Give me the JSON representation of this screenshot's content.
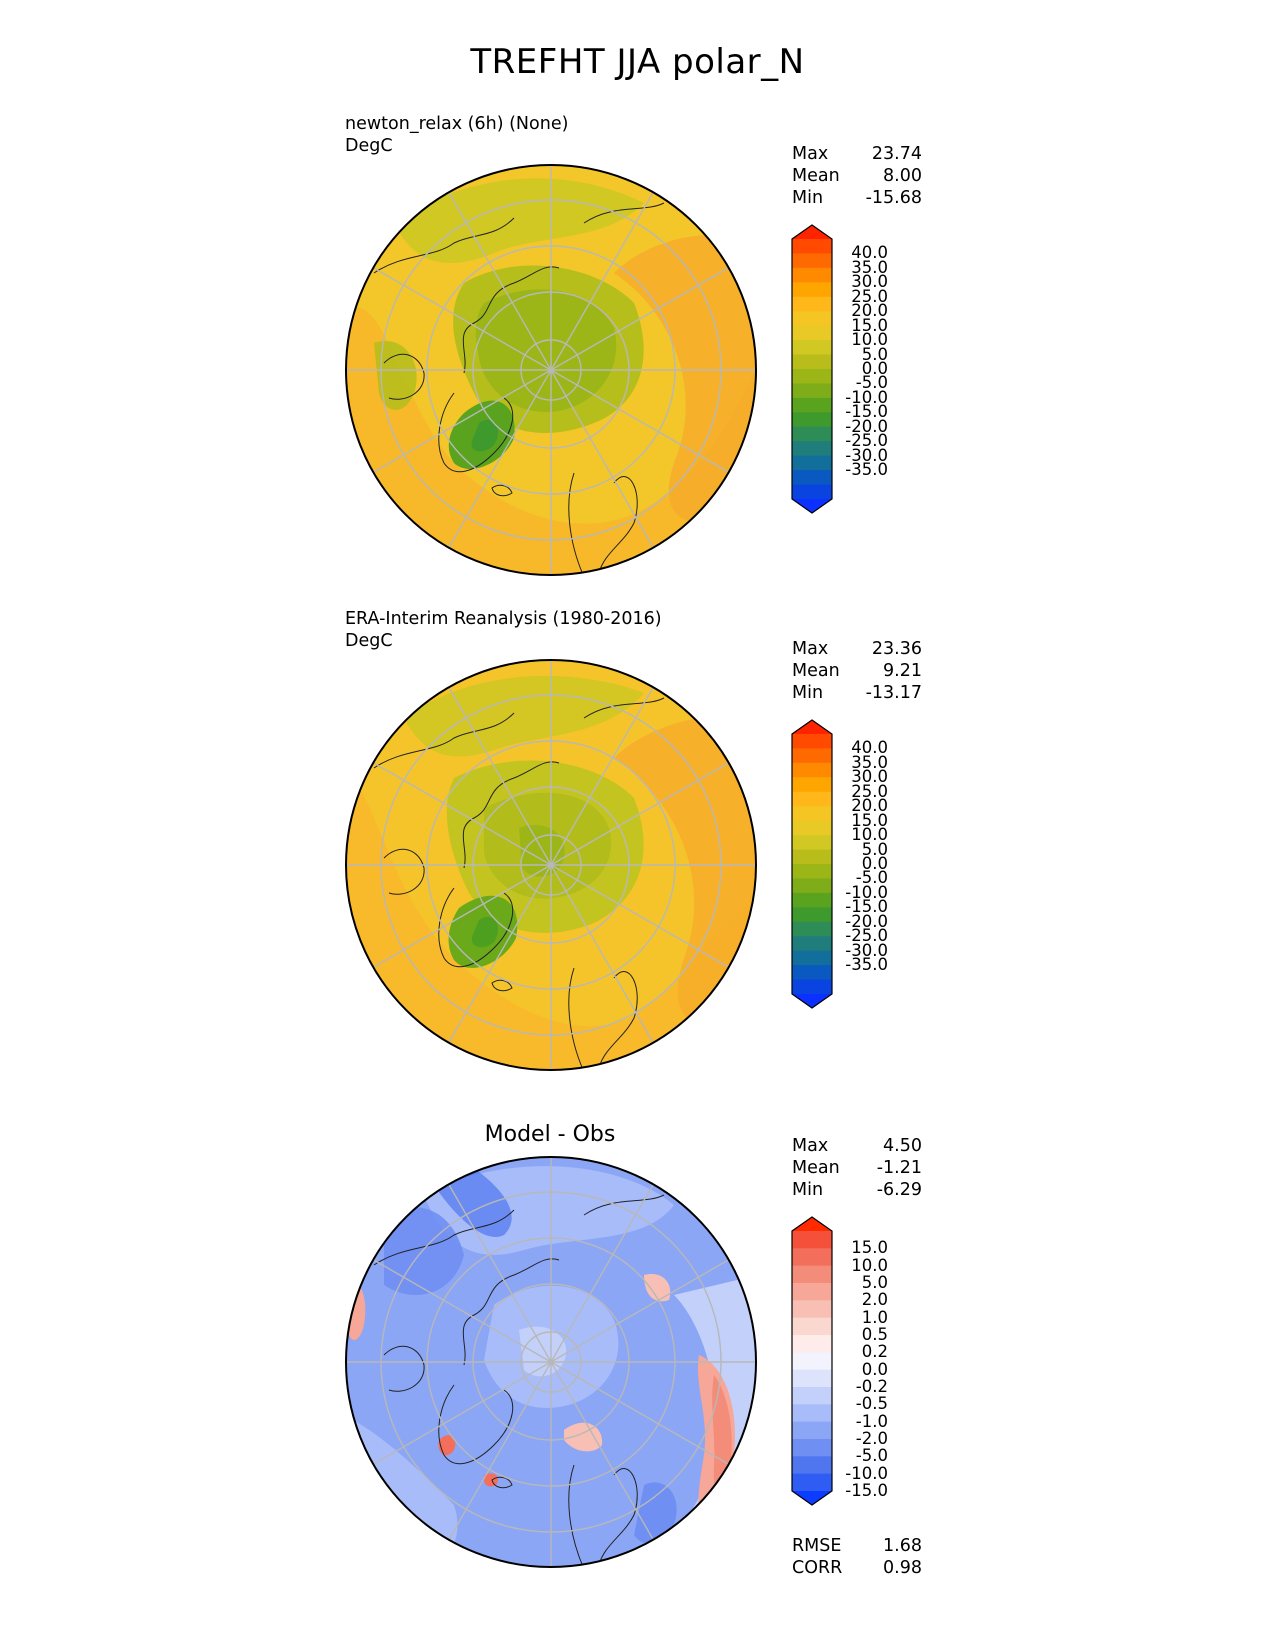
{
  "title": "TREFHT JJA polar_N",
  "panels": [
    {
      "id": "test",
      "title_line1": "newton_relax (6h) (None)",
      "title_line2": "DegC",
      "stats": [
        {
          "label": "Max",
          "value": "23.74"
        },
        {
          "label": "Mean",
          "value": "8.00"
        },
        {
          "label": "Min",
          "value": "-15.68"
        }
      ],
      "colorbar": {
        "ticks": [
          "40.0",
          "35.0",
          "30.0",
          "25.0",
          "20.0",
          "15.0",
          "10.0",
          "5.0",
          "0.0",
          "-5.0",
          "-10.0",
          "-15.0",
          "-20.0",
          "-25.0",
          "-30.0",
          "-35.0"
        ],
        "colors": [
          "#ff2400",
          "#ff4a00",
          "#ff6a00",
          "#ff8a00",
          "#ffa500",
          "#ffb71a",
          "#f5c623",
          "#e8c925",
          "#d2c823",
          "#b8bd1c",
          "#9cb618",
          "#7ead19",
          "#5aa31e",
          "#3f9a2e",
          "#2e8c57",
          "#1f7e7c",
          "#126f9b",
          "#0a59c0",
          "#0a44e0",
          "#0b30ff"
        ]
      },
      "extra_stats": []
    },
    {
      "id": "ref",
      "title_line1": "ERA-Interim Reanalysis (1980-2016)",
      "title_line2": "DegC",
      "stats": [
        {
          "label": "Max",
          "value": "23.36"
        },
        {
          "label": "Mean",
          "value": "9.21"
        },
        {
          "label": "Min",
          "value": "-13.17"
        }
      ],
      "colorbar": {
        "ticks": [
          "40.0",
          "35.0",
          "30.0",
          "25.0",
          "20.0",
          "15.0",
          "10.0",
          "5.0",
          "0.0",
          "-5.0",
          "-10.0",
          "-15.0",
          "-20.0",
          "-25.0",
          "-30.0",
          "-35.0"
        ],
        "colors": [
          "#ff2400",
          "#ff4a00",
          "#ff6a00",
          "#ff8a00",
          "#ffa500",
          "#ffb71a",
          "#f5c623",
          "#e8c925",
          "#d2c823",
          "#b8bd1c",
          "#9cb618",
          "#7ead19",
          "#5aa31e",
          "#3f9a2e",
          "#2e8c57",
          "#1f7e7c",
          "#126f9b",
          "#0a59c0",
          "#0a44e0",
          "#0b30ff"
        ]
      },
      "extra_stats": []
    },
    {
      "id": "diff",
      "center_title": "Model - Obs",
      "stats": [
        {
          "label": "Max",
          "value": "4.50"
        },
        {
          "label": "Mean",
          "value": "-1.21"
        },
        {
          "label": "Min",
          "value": "-6.29"
        }
      ],
      "colorbar": {
        "ticks": [
          "15.0",
          "10.0",
          "5.0",
          "2.0",
          "1.0",
          "0.5",
          "0.2",
          "0.0",
          "-0.2",
          "-0.5",
          "-1.0",
          "-2.0",
          "-5.0",
          "-10.0",
          "-15.0"
        ],
        "colors": [
          "#ff2a00",
          "#f5503a",
          "#f36f5c",
          "#f48c7a",
          "#f6a798",
          "#f8c0b4",
          "#fbd8cf",
          "#fdecea",
          "#f2f3fd",
          "#dde3fb",
          "#c3d0fa",
          "#a8bcf9",
          "#8ca6f6",
          "#6f8ff3",
          "#5076ef",
          "#2f5cf2",
          "#0b3cff"
        ]
      },
      "extra_stats": [
        {
          "label": "RMSE",
          "value": "1.68"
        },
        {
          "label": "CORR",
          "value": "0.98"
        }
      ]
    }
  ]
}
